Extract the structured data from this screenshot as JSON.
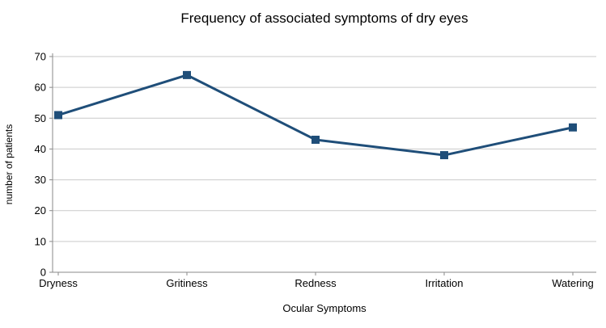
{
  "chart_data": {
    "type": "line",
    "title": "Frequency of associated symptoms of dry eyes",
    "xlabel": "Ocular Symptoms",
    "ylabel": "number of patients",
    "categories": [
      "Dryness",
      "Gritiness",
      "Redness",
      "Irritation",
      "Watering"
    ],
    "values": [
      51,
      64,
      43,
      38,
      47
    ],
    "ylim": [
      0,
      70
    ],
    "yticks": [
      0,
      10,
      20,
      30,
      40,
      50,
      60,
      70
    ],
    "grid": true,
    "legend": "none",
    "marker": "square",
    "colors": {
      "line": "#1f4e79",
      "grid": "#c9c9c9",
      "axis": "#8a8a8a",
      "text": "#000000",
      "background": "#ffffff"
    }
  }
}
